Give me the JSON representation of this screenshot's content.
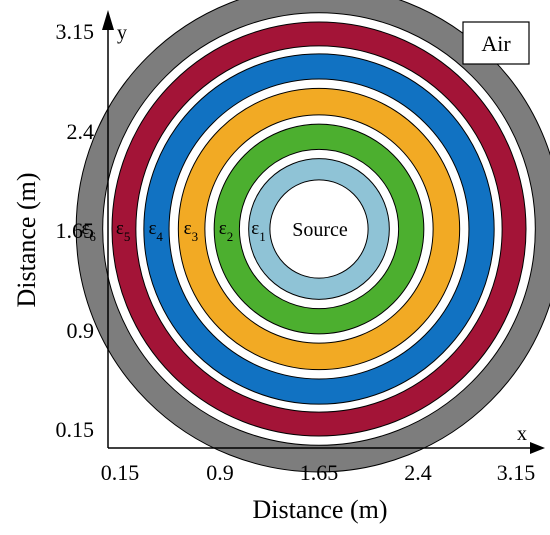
{
  "chart_data": {
    "type": "diagram",
    "xlabel": "Distance (m)",
    "ylabel": "Distance (m)",
    "x_axis_letter": "x",
    "y_axis_letter": "y",
    "x_ticks": [
      "0.15",
      "0.9",
      "1.65",
      "2.4",
      "3.15"
    ],
    "y_ticks": [
      "3.15",
      "2.4",
      "1.65",
      "0.9",
      "0.15"
    ],
    "xlim": [
      0,
      3.3
    ],
    "ylim": [
      0,
      3.3
    ],
    "medium_label": "Air",
    "center": [
      1.65,
      1.65
    ],
    "source": {
      "label": "Source",
      "outer_radius": 0.53,
      "inner_radius": 0.37,
      "color": "#8fc3d6"
    },
    "rings": [
      {
        "sym": "ε",
        "sub": "1",
        "outer_radius": 0.53,
        "inner_radius": 0.37,
        "color": "#8fc3d6"
      },
      {
        "sym": "ε",
        "sub": "2",
        "outer_radius": 0.79,
        "inner_radius": 0.6,
        "color": "#4caf2f"
      },
      {
        "sym": "ε",
        "sub": "3",
        "outer_radius": 1.06,
        "inner_radius": 0.86,
        "color": "#f2aa24"
      },
      {
        "sym": "ε",
        "sub": "4",
        "outer_radius": 1.32,
        "inner_radius": 1.13,
        "color": "#1172c2"
      },
      {
        "sym": "ε",
        "sub": "5",
        "outer_radius": 1.56,
        "inner_radius": 1.38,
        "color": "#a31437"
      },
      {
        "sym": "ε",
        "sub": "6",
        "outer_radius": 1.83,
        "inner_radius": 1.63,
        "color": "#7d7d7d"
      }
    ]
  }
}
